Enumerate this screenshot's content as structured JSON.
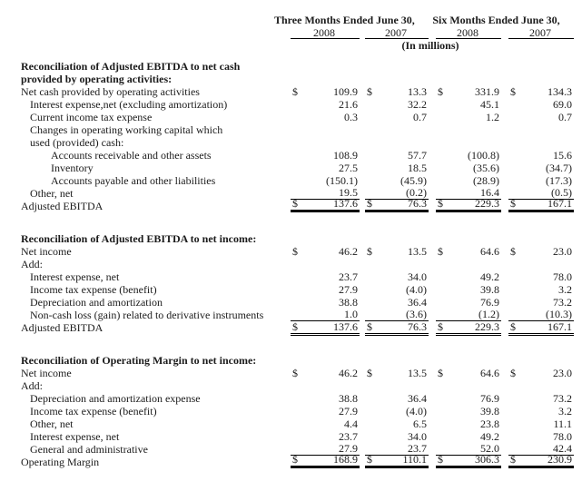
{
  "currency_symbol": "$",
  "header": {
    "col_groups": [
      {
        "label": "Three Months Ended June 30,"
      },
      {
        "label": "Six Months Ended June 30,"
      }
    ],
    "years": [
      "2008",
      "2007",
      "2008",
      "2007"
    ],
    "units_note": "(In millions)"
  },
  "sections": [
    {
      "title_lines": [
        "Reconciliation of Adjusted EBITDA to net cash",
        "provided by operating activities:"
      ],
      "rows": [
        {
          "label": "Net cash provided by operating activities",
          "indent": 0,
          "dollar": true,
          "values": [
            "109.9",
            "13.3",
            "331.9",
            "134.3"
          ]
        },
        {
          "label": "Interest expense,net  (excluding amortization)",
          "indent": 1,
          "values": [
            "21.6",
            "32.2",
            "45.1",
            "69.0"
          ]
        },
        {
          "label": "Current income tax expense",
          "indent": 1,
          "values": [
            "0.3",
            "0.7",
            "1.2",
            "0.7"
          ]
        },
        {
          "label": "Changes in operating working capital which",
          "indent": 1
        },
        {
          "label": "used (provided) cash:",
          "indent": 1
        },
        {
          "label": "Accounts receivable and other assets",
          "indent": 2,
          "values": [
            "108.9",
            "57.7",
            "(100.8)",
            "15.6"
          ]
        },
        {
          "label": "Inventory",
          "indent": 2,
          "values": [
            "27.5",
            "18.5",
            "(35.6)",
            "(34.7)"
          ]
        },
        {
          "label": "Accounts payable and other liabilities",
          "indent": 2,
          "values": [
            "(150.1)",
            "(45.9)",
            "(28.9)",
            "(17.3)"
          ]
        },
        {
          "label": "Other, net",
          "indent": 1,
          "rule": true,
          "values": [
            "19.5",
            "(0.2)",
            "16.4",
            "(0.5)"
          ]
        },
        {
          "label": "Adjusted EBITDA",
          "indent": 0,
          "dollar": true,
          "total": "thick",
          "values": [
            "137.6",
            "76.3",
            "229.3",
            "167.1"
          ]
        }
      ]
    },
    {
      "title_lines": [
        "Reconciliation of  Adjusted EBITDA to net income:"
      ],
      "rows": [
        {
          "label": "Net income",
          "indent": 0,
          "dollar": true,
          "values": [
            "46.2",
            "13.5",
            "64.6",
            "23.0"
          ]
        },
        {
          "label": "Add:",
          "indent": 0
        },
        {
          "label": "Interest expense, net",
          "indent": 1,
          "values": [
            "23.7",
            "34.0",
            "49.2",
            "78.0"
          ]
        },
        {
          "label": "Income tax expense (benefit)",
          "indent": 1,
          "values": [
            "27.9",
            "(4.0)",
            "39.8",
            "3.2"
          ]
        },
        {
          "label": "Depreciation and amortization",
          "indent": 1,
          "values": [
            "38.8",
            "36.4",
            "76.9",
            "73.2"
          ]
        },
        {
          "label": "Non-cash loss (gain) related to derivative instruments",
          "indent": 1,
          "rule": true,
          "values": [
            "1.0",
            "(3.6)",
            "(1.2)",
            "(10.3)"
          ]
        },
        {
          "label": "Adjusted EBITDA",
          "indent": 0,
          "dollar": true,
          "total": "double",
          "values": [
            "137.6",
            "76.3",
            "229.3",
            "167.1"
          ]
        }
      ]
    },
    {
      "title_lines": [
        "Reconciliation of  Operating Margin to net income:"
      ],
      "rows": [
        {
          "label": "Net income",
          "indent": 0,
          "dollar": true,
          "values": [
            "46.2",
            "13.5",
            "64.6",
            "23.0"
          ]
        },
        {
          "label": "Add:",
          "indent": 0
        },
        {
          "label": "Depreciation and amortization expense",
          "indent": 1,
          "values": [
            "38.8",
            "36.4",
            "76.9",
            "73.2"
          ]
        },
        {
          "label": "Income tax expense (benefit)",
          "indent": 1,
          "values": [
            "27.9",
            "(4.0)",
            "39.8",
            "3.2"
          ]
        },
        {
          "label": "Other, net",
          "indent": 1,
          "values": [
            "4.4",
            "6.5",
            "23.8",
            "11.1"
          ]
        },
        {
          "label": "Interest expense, net",
          "indent": 1,
          "values": [
            "23.7",
            "34.0",
            "49.2",
            "78.0"
          ]
        },
        {
          "label": "General and administrative",
          "indent": 1,
          "rule": true,
          "values": [
            "27.9",
            "23.7",
            "52.0",
            "42.4"
          ]
        },
        {
          "label": "Operating Margin",
          "indent": 0,
          "dollar": true,
          "total": "thick",
          "values": [
            "168.9",
            "110.1",
            "306.3",
            "230.9"
          ]
        }
      ]
    }
  ]
}
